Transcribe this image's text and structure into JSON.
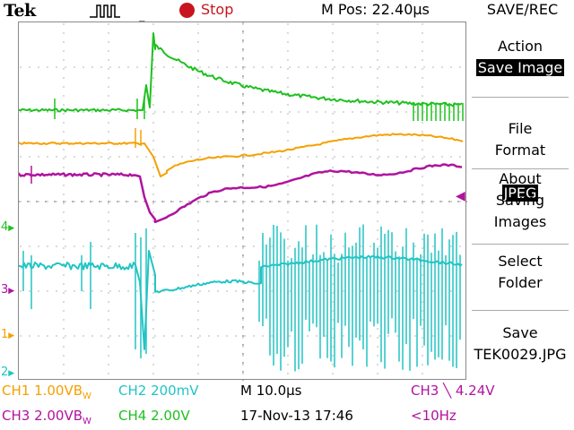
{
  "header": {
    "brand": "Tek",
    "acquisition_icon": "pulse-waveform-icon",
    "run_state": "Stop",
    "run_state_color": "#c8141e",
    "m_pos": "M Pos: 22.40µs",
    "menu_title": "SAVE/REC"
  },
  "markers": {
    "ch4": "4",
    "ch3": "3",
    "ch1": "1",
    "ch2": "2",
    "trigger_position_icon": "trigger-position-arrow-icon",
    "trigger_level_icon": "trigger-level-arrow-icon"
  },
  "menu": {
    "action": {
      "label": "Action",
      "value": "Save Image"
    },
    "file_format": {
      "label": "File\nFormat",
      "value": "JPEG"
    },
    "about": {
      "label": "About\nSaving\nImages"
    },
    "select_folder": {
      "label": "Select\nFolder"
    },
    "save": {
      "label": "Save",
      "value": "TEK0029.JPG"
    }
  },
  "status": {
    "ch1": "CH1  1.00VB",
    "ch1_suffix": "W",
    "ch2": "CH2  200mV",
    "timebase": "M 10.0µs",
    "trigger": "CH3 ╲ 4.24V",
    "ch3": "CH3  2.00VB",
    "ch3_suffix": "W",
    "ch4": "CH4  2.00V",
    "datetime": "17-Nov-13 17:46",
    "trigger_freq": "<10Hz"
  },
  "colors": {
    "ch1": "#f5a000",
    "ch2": "#22c4c4",
    "ch3": "#b0139e",
    "ch4": "#1fc01f",
    "grid": "#b4b4b4"
  }
}
